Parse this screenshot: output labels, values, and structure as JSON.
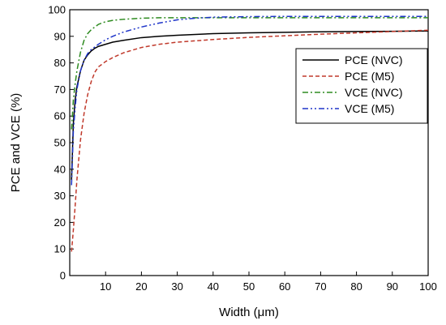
{
  "chart_data": {
    "type": "line",
    "xlabel": "Width (μm)",
    "ylabel": "PCE and VCE (%)",
    "xlim": [
      0,
      100
    ],
    "ylim": [
      0,
      100
    ],
    "x_ticks": [
      10,
      20,
      30,
      40,
      50,
      60,
      70,
      80,
      90,
      100
    ],
    "y_ticks": [
      0,
      10,
      20,
      30,
      40,
      50,
      60,
      70,
      80,
      90,
      100
    ],
    "grid": false,
    "legend_position": "top-right",
    "series": [
      {
        "name": "PCE (NVC)",
        "color": "#000000",
        "dash": "solid",
        "x": [
          0.5,
          1,
          1.5,
          2,
          3,
          4,
          5,
          6,
          7,
          8,
          10,
          12,
          15,
          20,
          25,
          30,
          40,
          50,
          60,
          70,
          80,
          90,
          100
        ],
        "y": [
          36,
          57,
          66,
          71,
          77,
          81,
          83,
          84.5,
          85.5,
          86.2,
          87,
          87.8,
          88.5,
          89.5,
          90,
          90.4,
          91,
          91.3,
          91.5,
          91.7,
          91.8,
          91.9,
          92
        ]
      },
      {
        "name": "PCE (M5)",
        "color": "#c0392b",
        "dash": "dashed",
        "x": [
          0.5,
          1,
          1.5,
          2,
          3,
          4,
          5,
          6,
          7,
          8,
          10,
          12,
          15,
          20,
          25,
          30,
          40,
          50,
          60,
          70,
          80,
          90,
          100
        ],
        "y": [
          9,
          17,
          26,
          36,
          51,
          61,
          68,
          73,
          76.5,
          78.5,
          80.5,
          82,
          83.8,
          85.8,
          87,
          87.8,
          88.8,
          89.6,
          90.2,
          90.8,
          91.3,
          91.8,
          92.3
        ]
      },
      {
        "name": "VCE (NVC)",
        "color": "#2e8b20",
        "dash": "dash-dot",
        "x": [
          0.5,
          1,
          1.5,
          2,
          3,
          4,
          5,
          6,
          8,
          10,
          12,
          15,
          20,
          25,
          30,
          40,
          50,
          60,
          70,
          80,
          90,
          100
        ],
        "y": [
          55,
          66,
          72,
          77,
          84,
          88.5,
          91,
          92.5,
          94.5,
          95.5,
          96,
          96.4,
          96.8,
          97,
          97,
          97,
          97,
          97,
          97,
          97,
          97,
          97
        ]
      },
      {
        "name": "VCE (M5)",
        "color": "#1f35c9",
        "dash": "dash-dot-dot",
        "x": [
          0.5,
          1,
          1.5,
          2,
          3,
          4,
          5,
          6,
          8,
          10,
          12,
          15,
          20,
          25,
          30,
          35,
          40,
          50,
          60,
          70,
          80,
          90,
          100
        ],
        "y": [
          34,
          54,
          63,
          70,
          77,
          81,
          83.5,
          85,
          87,
          88.7,
          90,
          91.6,
          93.5,
          95,
          96.2,
          96.8,
          97.2,
          97.4,
          97.5,
          97.5,
          97.5,
          97.5,
          97.5
        ]
      }
    ]
  }
}
